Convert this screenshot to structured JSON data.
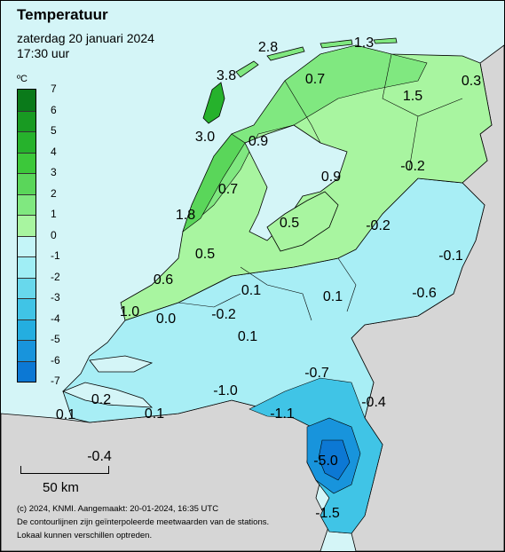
{
  "title": "Temperatuur",
  "date": "zaterdag 20 januari 2024",
  "time": "17:30 uur",
  "legend": {
    "unit": "ºC",
    "levels": [
      "7",
      "6",
      "5",
      "4",
      "3",
      "2",
      "1",
      "0",
      "-1",
      "-2",
      "-3",
      "-4",
      "-5",
      "-6",
      "-7"
    ],
    "colors": [
      "#0a7a1a",
      "#189a22",
      "#26b22c",
      "#3cc83a",
      "#5ad65a",
      "#80e880",
      "#a8f5a0",
      "#c4f5f8",
      "#a0eef5",
      "#68d8ec",
      "#40c4e6",
      "#24aee0",
      "#1894dc",
      "#0c78d4",
      "#0a5ec8"
    ]
  },
  "stations": [
    {
      "id": "s1",
      "text": "2.8"
    },
    {
      "id": "s2",
      "text": "1.3"
    },
    {
      "id": "s3",
      "text": "3.8"
    },
    {
      "id": "s4",
      "text": "0.7"
    },
    {
      "id": "s5",
      "text": "1.5"
    },
    {
      "id": "s6",
      "text": "0.3"
    },
    {
      "id": "s7",
      "text": "3.0"
    },
    {
      "id": "s8",
      "text": "0.9"
    },
    {
      "id": "s9",
      "text": "0.9"
    },
    {
      "id": "s10",
      "text": "-0.2"
    },
    {
      "id": "s11",
      "text": "0.7"
    },
    {
      "id": "s12",
      "text": "1.8"
    },
    {
      "id": "s13",
      "text": "0.5"
    },
    {
      "id": "s14",
      "text": "-0.2"
    },
    {
      "id": "s15",
      "text": "0.5"
    },
    {
      "id": "s16",
      "text": "-0.1"
    },
    {
      "id": "s17",
      "text": "0.6"
    },
    {
      "id": "s18",
      "text": "0.1"
    },
    {
      "id": "s19",
      "text": "0.1"
    },
    {
      "id": "s20",
      "text": "-0.6"
    },
    {
      "id": "s21",
      "text": "1.0"
    },
    {
      "id": "s22",
      "text": "0.0"
    },
    {
      "id": "s23",
      "text": "-0.2"
    },
    {
      "id": "s24",
      "text": "0.1"
    },
    {
      "id": "s25",
      "text": "-0.7"
    },
    {
      "id": "s26",
      "text": "-1.0"
    },
    {
      "id": "s27",
      "text": "0.2"
    },
    {
      "id": "s28",
      "text": "-0.4"
    },
    {
      "id": "s29",
      "text": "-1.1"
    },
    {
      "id": "s30",
      "text": "0.1"
    },
    {
      "id": "s31",
      "text": "0.1"
    },
    {
      "id": "s32",
      "text": "-5.0"
    },
    {
      "id": "s33",
      "text": "-0.4"
    },
    {
      "id": "s34",
      "text": "-1.5"
    }
  ],
  "scale_label": "50 km",
  "footer": [
    "(c) 2024, KNMI. Aangemaakt: 20-01-2024, 16:35 UTC",
    "De contourlijnen zijn geïnterpoleerde meetwaarden van de stations.",
    "Lokaal kunnen verschillen optreden."
  ]
}
